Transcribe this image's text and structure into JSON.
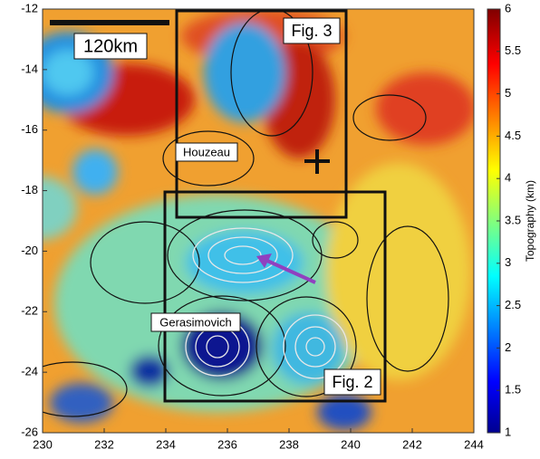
{
  "chart_data": {
    "type": "map",
    "xlim": [
      230,
      244
    ],
    "xticks": [
      230,
      232,
      234,
      236,
      238,
      240,
      242,
      244
    ],
    "ylim": [
      -26,
      -12
    ],
    "yticks": [
      -26,
      -24,
      -22,
      -20,
      -18,
      -16,
      -14,
      -12
    ],
    "colorbar": {
      "lim": [
        1,
        6
      ],
      "ticks": [
        1,
        1.5,
        2,
        2.5,
        3,
        3.5,
        4,
        4.5,
        5,
        5.5,
        6
      ],
      "label": "Topography (km)"
    },
    "annotations": {
      "scale_bar": "120km",
      "fig3": "Fig. 3",
      "fig2": "Fig. 2",
      "houzeau": "Houzeau",
      "gerasimovich": "Gerasimovich"
    }
  }
}
